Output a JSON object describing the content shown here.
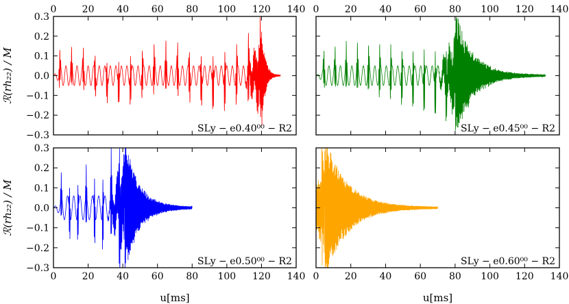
{
  "chart_data": [
    {
      "type": "line",
      "panel": "top-left",
      "label": "SLy − e0.40⁰⁰ − R2",
      "color": "#ff0000",
      "ylabel": "ℛ(rh₂₂) / M",
      "xlabel": "",
      "xlim": [
        0,
        140
      ],
      "ylim": [
        -0.3,
        0.3
      ],
      "xticks": [
        "0",
        "20",
        "40",
        "60",
        "80",
        "100",
        "120",
        "140"
      ],
      "yticks": [
        "0.3",
        "0.2",
        "0.1",
        "0.0",
        "−0.1",
        "−0.2",
        "−0.3"
      ],
      "series": [
        {
          "name": "e0.40",
          "signal": {
            "u_end": 131,
            "burst_start": 3,
            "burst_period": 6.8,
            "burst_width": 1.3,
            "burst_amp": 0.13,
            "base_period": 3.2,
            "base_amp": 0.05,
            "merger_u": 120,
            "merger_amp": 0.24,
            "tail_end": 131,
            "tail_amp": 0.02
          }
        }
      ]
    },
    {
      "type": "line",
      "panel": "top-right",
      "label": "SLy − e0.45⁰⁰ − R2",
      "color": "#008000",
      "ylabel": "",
      "xlabel": "",
      "xlim": [
        0,
        140
      ],
      "ylim": [
        -0.3,
        0.3
      ],
      "xticks": [
        "0",
        "20",
        "40",
        "60",
        "80",
        "100",
        "120",
        "140"
      ],
      "yticks": [],
      "series": [
        {
          "name": "e0.45",
          "signal": {
            "u_end": 132,
            "burst_start": 4,
            "burst_period": 6.4,
            "burst_width": 1.2,
            "burst_amp": 0.14,
            "base_period": 3.3,
            "base_amp": 0.05,
            "merger_u": 80,
            "merger_amp": 0.26,
            "tail_end": 132,
            "tail_amp": 0.06
          }
        }
      ]
    },
    {
      "type": "line",
      "panel": "bottom-left",
      "label": "SLy − e0.50⁰⁰ − R2",
      "color": "#0000ff",
      "ylabel": "ℛ(rh₂₂) / M",
      "xlabel": "u[ms]",
      "xlim": [
        0,
        140
      ],
      "ylim": [
        -0.3,
        0.3
      ],
      "xticks": [
        "0",
        "20",
        "40",
        "60",
        "80",
        "100",
        "120",
        "140"
      ],
      "yticks": [
        "0.3",
        "0.2",
        "0.1",
        "0.0",
        "−0.1",
        "−0.2",
        "−0.3"
      ],
      "series": [
        {
          "name": "e0.50",
          "signal": {
            "u_end": 80,
            "burst_start": 4,
            "burst_period": 4.8,
            "burst_width": 1.0,
            "burst_amp": 0.16,
            "base_period": 3.6,
            "base_amp": 0.06,
            "merger_u": 41,
            "merger_amp": 0.27,
            "tail_end": 80,
            "tail_amp": 0.08
          }
        }
      ]
    },
    {
      "type": "line",
      "panel": "bottom-right",
      "label": "SLy − e0.60⁰⁰ − R2",
      "color": "#ffa500",
      "ylabel": "",
      "xlabel": "u[ms]",
      "xlim": [
        0,
        140
      ],
      "ylim": [
        -0.3,
        0.3
      ],
      "xticks": [
        "0",
        "20",
        "40",
        "60",
        "80",
        "100",
        "120",
        "140"
      ],
      "yticks": [],
      "series": [
        {
          "name": "e0.60",
          "signal": {
            "u_end": 70,
            "burst_start": 3,
            "burst_period": 3.0,
            "burst_width": 0.8,
            "burst_amp": 0.2,
            "base_period": 3.0,
            "base_amp": 0.05,
            "merger_u": 5,
            "merger_amp": 0.28,
            "tail_end": 70,
            "tail_amp": 0.06
          }
        }
      ]
    }
  ],
  "top_axis_ticks": [
    "0",
    "20",
    "40",
    "60",
    "80",
    "100",
    "120",
    "140"
  ]
}
